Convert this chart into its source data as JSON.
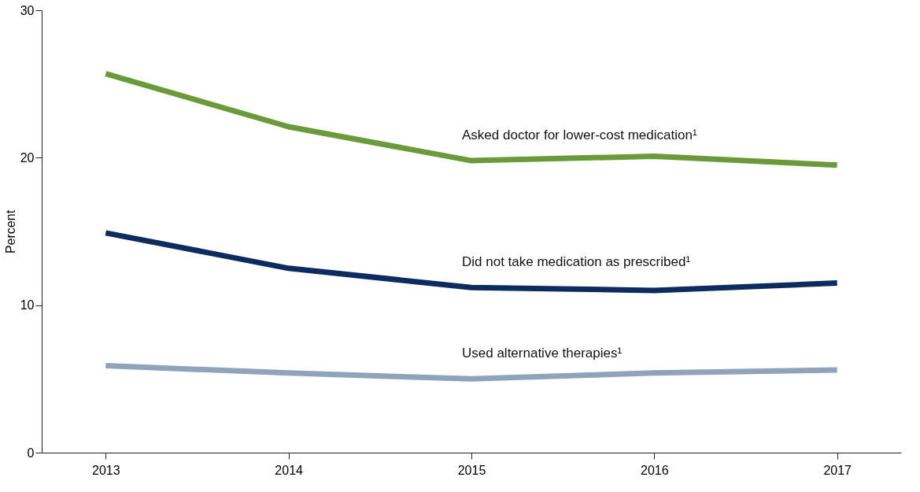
{
  "chart_data": {
    "type": "line",
    "ylabel": "Percent",
    "categories": [
      "2013",
      "2014",
      "2015",
      "2016",
      "2017"
    ],
    "series": [
      {
        "name": "Asked doctor for lower-cost medication¹",
        "color": "#6a9a3a",
        "values": [
          25.7,
          22.1,
          19.8,
          20.1,
          19.5
        ]
      },
      {
        "name": "Did not take medication as prescribed¹",
        "color": "#0d2b5e",
        "values": [
          14.9,
          12.5,
          11.2,
          11.0,
          11.5
        ]
      },
      {
        "name": "Used alternative therapies¹",
        "color": "#8fa3bb",
        "values": [
          5.9,
          5.4,
          5.0,
          5.4,
          5.6
        ]
      }
    ],
    "ylim": [
      0,
      30
    ],
    "yticks": [
      0,
      10,
      20,
      30
    ],
    "grid": false,
    "marker": "none",
    "line_style": "solid"
  }
}
